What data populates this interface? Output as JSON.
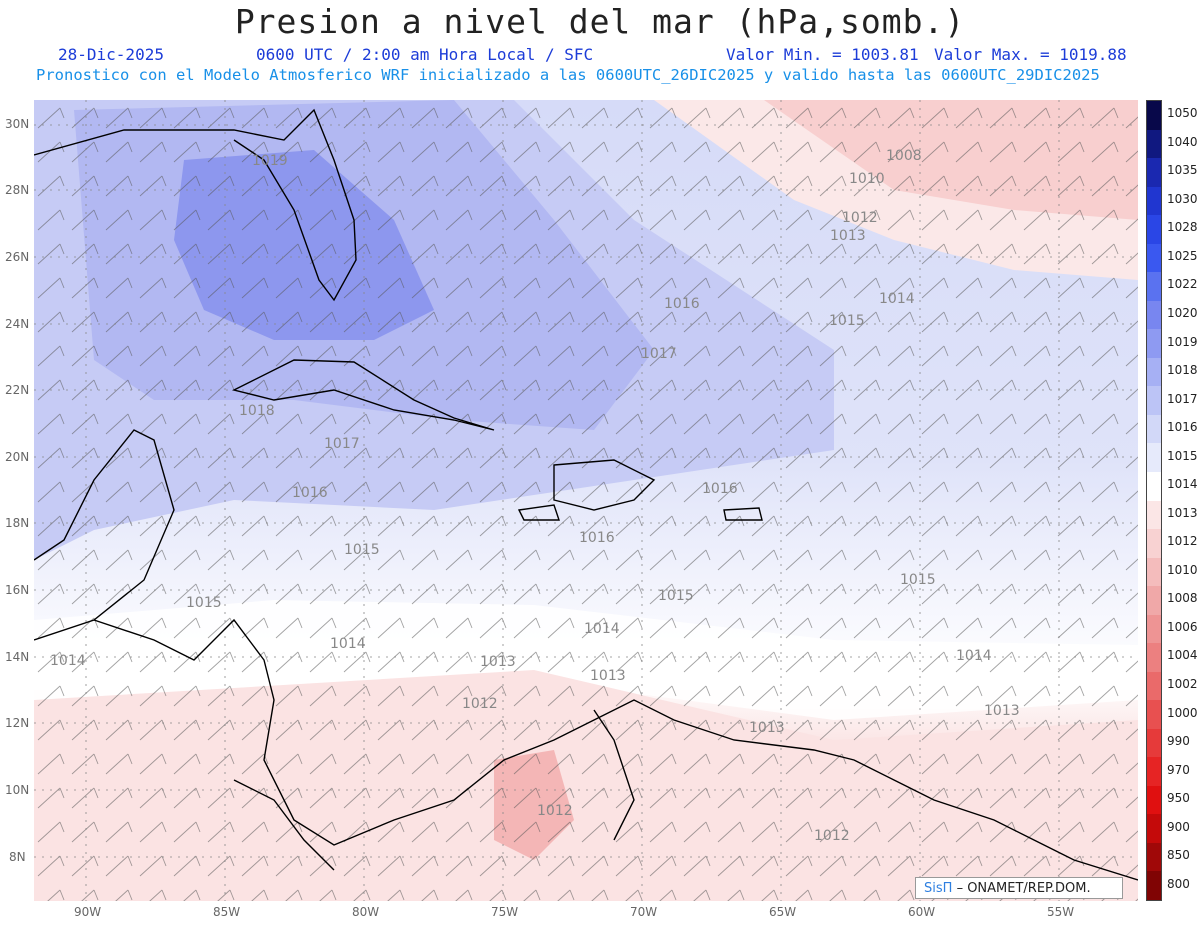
{
  "header": {
    "title": "Presion a nivel del mar (hPa,somb.)",
    "date": "28-Dic-2025",
    "time_info": "0600 UTC / 2:00 am Hora Local / SFC",
    "min_value": "Valor Min. = 1003.81",
    "max_value": "Valor Max. = 1019.88",
    "model_info": "Pronostico con el Modelo Atmosferico WRF inicializado a las 0600UTC_26DIC2025 y valido hasta las  0600UTC_29DIC2025"
  },
  "axes": {
    "lat_labels": [
      "30N",
      "28N",
      "26N",
      "24N",
      "22N",
      "20N",
      "18N",
      "16N",
      "14N",
      "12N",
      "10N",
      "8N"
    ],
    "lon_labels": [
      "90W",
      "85W",
      "80W",
      "75W",
      "70W",
      "65W",
      "60W",
      "55W"
    ]
  },
  "colorbar": {
    "labels": [
      "1050",
      "1040",
      "1035",
      "1030",
      "1028",
      "1025",
      "1022",
      "1020",
      "1019",
      "1018",
      "1017",
      "1016",
      "1015",
      "1014",
      "1013",
      "1012",
      "1010",
      "1008",
      "1006",
      "1004",
      "1002",
      "1000",
      "990",
      "970",
      "950",
      "900",
      "850",
      "800"
    ],
    "colors": [
      "#08084a",
      "#101880",
      "#1a28b0",
      "#2036d0",
      "#2a46e6",
      "#3a58f0",
      "#5a72f0",
      "#7886f0",
      "#8e9af2",
      "#a6b0f4",
      "#bcc4f6",
      "#d2d8f8",
      "#e6eafb",
      "#ffffff",
      "#fbe6e6",
      "#f8d2d2",
      "#f4bcbc",
      "#f0a8a8",
      "#ee9494",
      "#ec8080",
      "#ea6a6a",
      "#e85050",
      "#e63a3a",
      "#e62424",
      "#e01010",
      "#c40a0a",
      "#a00808",
      "#800404"
    ]
  },
  "contour_labels": [
    "1008",
    "1010",
    "1012",
    "1013",
    "1014",
    "1015",
    "1016",
    "1017",
    "1018",
    "1019",
    "1013",
    "1014",
    "1015",
    "1016",
    "1017",
    "1015",
    "1016",
    "1015",
    "1014",
    "1013",
    "1012",
    "1013",
    "1014",
    "1015",
    "1016",
    "1012",
    "1012",
    "1013",
    "1014"
  ],
  "credit": {
    "sis": "SisΠ",
    "org": "– ONAMET/REP.DOM."
  }
}
